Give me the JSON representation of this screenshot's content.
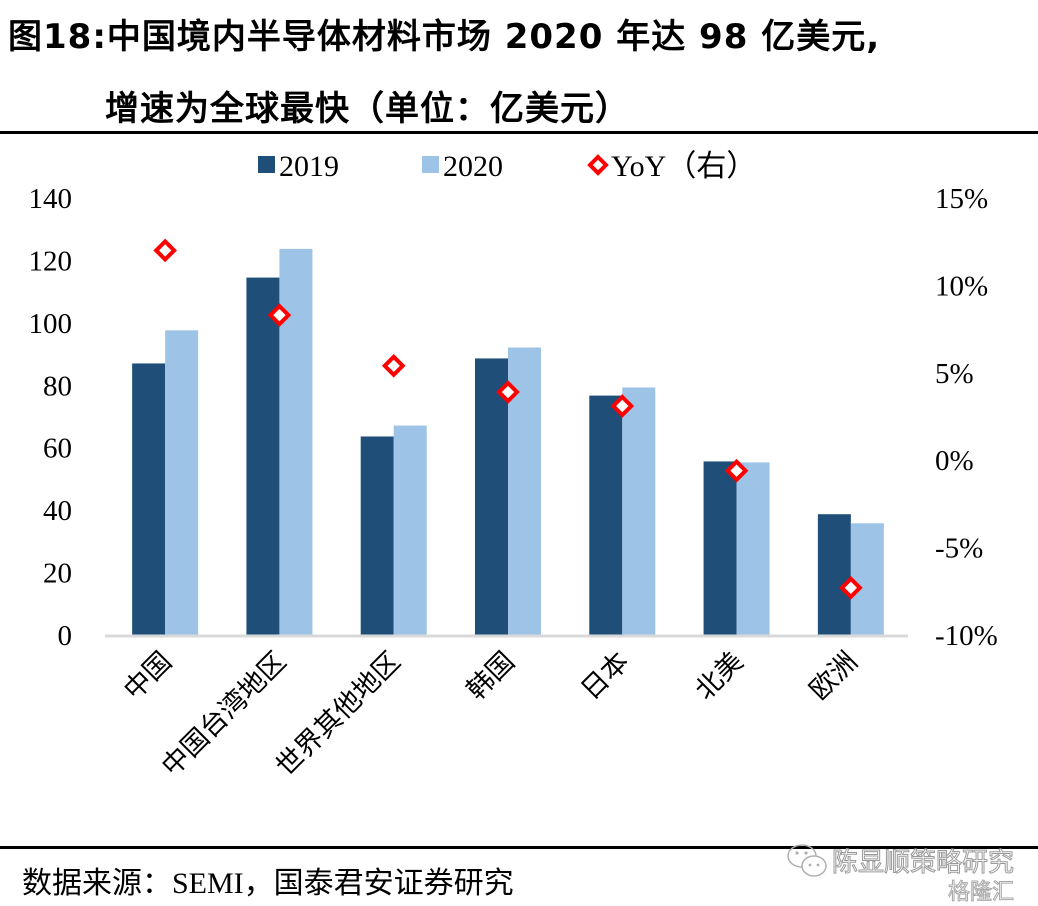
{
  "figure": {
    "title_line1": "图18:中国境内半导体材料市场 2020 年达 98 亿美元,",
    "title_line2": "增速为全球最快（单位：亿美元）",
    "source": "数据来源：SEMI，国泰君安证券研究",
    "watermark_line1": "陈显顺策略研究",
    "watermark_line2": "格隆汇"
  },
  "colors": {
    "series_2019": "#1f4e79",
    "series_2020": "#9dc3e6",
    "yoy_marker": "#ff0000",
    "axis_line": "#d9d9d9"
  },
  "chart_data": {
    "type": "bar",
    "title": "中国境内半导体材料市场 2020 年达 98 亿美元，增速为全球最快（单位：亿美元）",
    "xlabel": "",
    "ylabel": "亿美元",
    "categories": [
      "中国",
      "中国台湾地区",
      "世界其他地区",
      "韩国",
      "日本",
      "北美",
      "欧洲"
    ],
    "series": [
      {
        "name": "2019",
        "type": "bar",
        "axis": "left",
        "values": [
          87.0,
          114.5,
          63.6,
          88.6,
          76.7,
          55.6,
          38.7
        ]
      },
      {
        "name": "2020",
        "type": "bar",
        "axis": "left",
        "values": [
          97.6,
          123.7,
          67.1,
          92.1,
          79.3,
          55.3,
          35.8
        ]
      },
      {
        "name": "YoY（右）",
        "type": "scatter",
        "marker": "diamond-open",
        "axis": "right",
        "values": [
          12.0,
          8.3,
          5.4,
          3.9,
          3.1,
          -0.6,
          -7.3
        ]
      }
    ],
    "ylim": [
      0,
      140
    ],
    "yticks": [
      0,
      20,
      40,
      60,
      80,
      100,
      120,
      140
    ],
    "ytick_labels": [
      "0",
      "20",
      "40",
      "60",
      "80",
      "100",
      "120",
      "140"
    ],
    "y2lim": [
      -10,
      15
    ],
    "y2ticks": [
      -10,
      -5,
      0,
      5,
      10,
      15
    ],
    "y2tick_labels": [
      "-10%",
      "-5%",
      "0%",
      "5%",
      "10%",
      "15%"
    ],
    "legend": {
      "placement": "top-center",
      "entries": [
        "2019",
        "2020",
        "YoY（右）"
      ]
    },
    "grid": false
  }
}
